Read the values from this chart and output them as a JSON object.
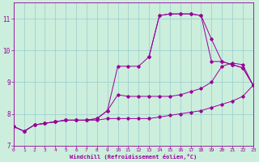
{
  "xlabel": "Windchill (Refroidissement éolien,°C)",
  "xlim": [
    0,
    23
  ],
  "ylim": [
    7,
    11.5
  ],
  "yticks": [
    7,
    8,
    9,
    10,
    11
  ],
  "xticks": [
    0,
    1,
    2,
    3,
    4,
    5,
    6,
    7,
    8,
    9,
    10,
    11,
    12,
    13,
    14,
    15,
    16,
    17,
    18,
    19,
    20,
    21,
    22,
    23
  ],
  "bg_color": "#cceedd",
  "line_color": "#990099",
  "grid_color": "#99cccc",
  "line1_x": [
    0,
    1,
    2,
    3,
    4,
    5,
    6,
    7,
    8,
    9,
    10,
    11,
    12,
    13,
    14,
    15,
    16,
    17,
    18,
    19,
    20,
    21,
    22,
    23
  ],
  "line1_y": [
    7.6,
    7.45,
    7.65,
    7.7,
    7.75,
    7.8,
    7.8,
    7.8,
    7.8,
    7.85,
    7.85,
    7.85,
    7.85,
    7.85,
    7.9,
    7.95,
    8.0,
    8.05,
    8.1,
    8.2,
    8.3,
    8.4,
    8.55,
    8.9
  ],
  "line2_x": [
    0,
    1,
    2,
    3,
    4,
    5,
    6,
    7,
    8,
    9,
    10,
    11,
    12,
    13,
    14,
    15,
    16,
    17,
    18,
    19,
    20,
    21,
    22,
    23
  ],
  "line2_y": [
    7.6,
    7.45,
    7.65,
    7.7,
    7.75,
    7.8,
    7.8,
    7.8,
    7.85,
    8.1,
    8.6,
    8.55,
    8.55,
    8.55,
    8.55,
    8.55,
    8.6,
    8.7,
    8.8,
    9.0,
    9.5,
    9.6,
    9.55,
    8.9
  ],
  "line3_x": [
    0,
    1,
    2,
    3,
    4,
    5,
    6,
    7,
    8,
    9,
    10,
    11,
    12,
    13,
    14,
    15,
    16,
    17,
    18,
    19,
    20,
    21,
    22,
    23
  ],
  "line3_y": [
    7.6,
    7.45,
    7.65,
    7.7,
    7.75,
    7.8,
    7.8,
    7.8,
    7.85,
    8.1,
    9.5,
    9.5,
    9.5,
    9.8,
    11.1,
    11.15,
    11.15,
    11.15,
    11.1,
    10.35,
    9.65,
    9.55,
    9.45,
    8.9
  ],
  "line4_x": [
    13,
    14,
    15,
    16,
    17,
    18,
    19,
    20,
    21,
    22,
    23
  ],
  "line4_y": [
    9.8,
    11.1,
    11.15,
    11.15,
    11.15,
    11.1,
    9.65,
    9.65,
    9.55,
    9.45,
    8.9
  ]
}
